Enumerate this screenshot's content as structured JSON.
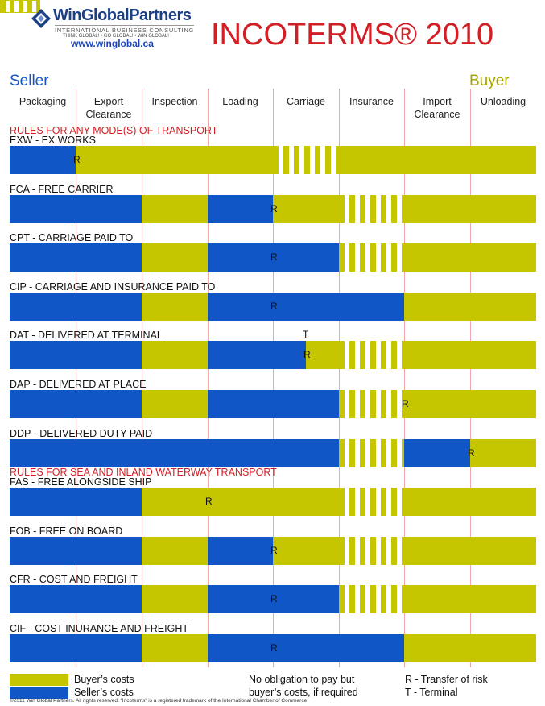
{
  "header": {
    "brand": "WinGlobalPartners",
    "brand_sub": "INTERNATIONAL BUSINESS CONSULTING",
    "tagline": "THINK GLOBAL! • GO GLOBAL! • WIN GLOBAL!",
    "url": "www.winglobal.ca",
    "title": "INCOTERMS® 2010"
  },
  "sides": {
    "seller": "Seller",
    "buyer": "Buyer"
  },
  "colors": {
    "seller": "#1056c7",
    "buyer": "#c6c600",
    "accent": "#d11f25"
  },
  "columns": [
    "Packaging",
    "Export\nClearance",
    "Inspection",
    "Loading",
    "Carriage",
    "Insurance",
    "Import\nClearance",
    "Unloading"
  ],
  "sections": [
    {
      "title": "RULES FOR ANY MODE(S) OF TRANSPORT",
      "before_row": 0
    },
    {
      "title": "RULES FOR SEA AND INLAND WATERWAY TRANSPORT",
      "before_row": 7
    }
  ],
  "rows": [
    {
      "label": "EXW - EX WORKS",
      "seller_until": 1,
      "carriage": "stripe",
      "insurance": "buyer",
      "risk_at": 1,
      "risk_label": "R"
    },
    {
      "label": "FCA - FREE CARRIER",
      "seller_until": 2,
      "blue_from": 3,
      "blue_until": 4,
      "carriage": "buyer",
      "insurance": "stripe",
      "risk_at": 4,
      "risk_label": "R"
    },
    {
      "label": "CPT - CARRIAGE PAID TO",
      "seller_until": 2,
      "blue_from": 3,
      "blue_until": 5,
      "insurance": "stripe",
      "risk_at": 4,
      "risk_label": "R"
    },
    {
      "label": "CIP - CARRIAGE AND INSURANCE PAID TO",
      "seller_until": 2,
      "blue_from": 3,
      "blue_until": 6,
      "risk_at": 4,
      "risk_label": "R"
    },
    {
      "label": "DAT - DELIVERED AT TERMINAL",
      "seller_until": 2,
      "blue_from": 3,
      "blue_until": 4.5,
      "insurance": "stripe",
      "risk_at": 4.5,
      "risk_label": "R",
      "terminal": "T"
    },
    {
      "label": "DAP - DELIVERED AT PLACE",
      "seller_until": 2,
      "blue_from": 3,
      "blue_until": 5,
      "insurance": "stripe",
      "risk_at": 6,
      "risk_label": "R"
    },
    {
      "label": "DDP - DELIVERED DUTY PAID",
      "seller_until": 5,
      "insurance": "stripe",
      "blue_from": 6,
      "blue_until": 7,
      "risk_at": 7,
      "risk_label": "R"
    },
    {
      "label": "FAS - FREE ALONGSIDE SHIP",
      "seller_until": 2,
      "insurance": "stripe",
      "risk_at": 3,
      "risk_label": "R"
    },
    {
      "label": "FOB - FREE ON BOARD",
      "seller_until": 2,
      "blue_from": 3,
      "blue_until": 4,
      "insurance": "stripe",
      "risk_at": 4,
      "risk_label": "R"
    },
    {
      "label": "CFR - COST AND FREIGHT",
      "seller_until": 2,
      "blue_from": 3,
      "blue_until": 5,
      "insurance": "stripe",
      "risk_at": 4,
      "risk_label": "R"
    },
    {
      "label": "CIF - COST INURANCE AND FREIGHT",
      "seller_until": 2,
      "blue_from": 3,
      "blue_until": 6,
      "risk_at": 4,
      "risk_label": "R"
    }
  ],
  "legend": {
    "buyer_costs": "Buyer’s costs",
    "seller_costs": "Seller’s costs",
    "no_obligation_1": "No obligation to pay but",
    "no_obligation_2": "buyer’s costs, if required",
    "risk": "R - Transfer of risk",
    "terminal": "T - Terminal"
  },
  "footer": {
    "copyright": "©2011 Win Global Partners. All rights reserved. “Incoterms” is a registered trademark of the International Chamber of Commerce"
  }
}
